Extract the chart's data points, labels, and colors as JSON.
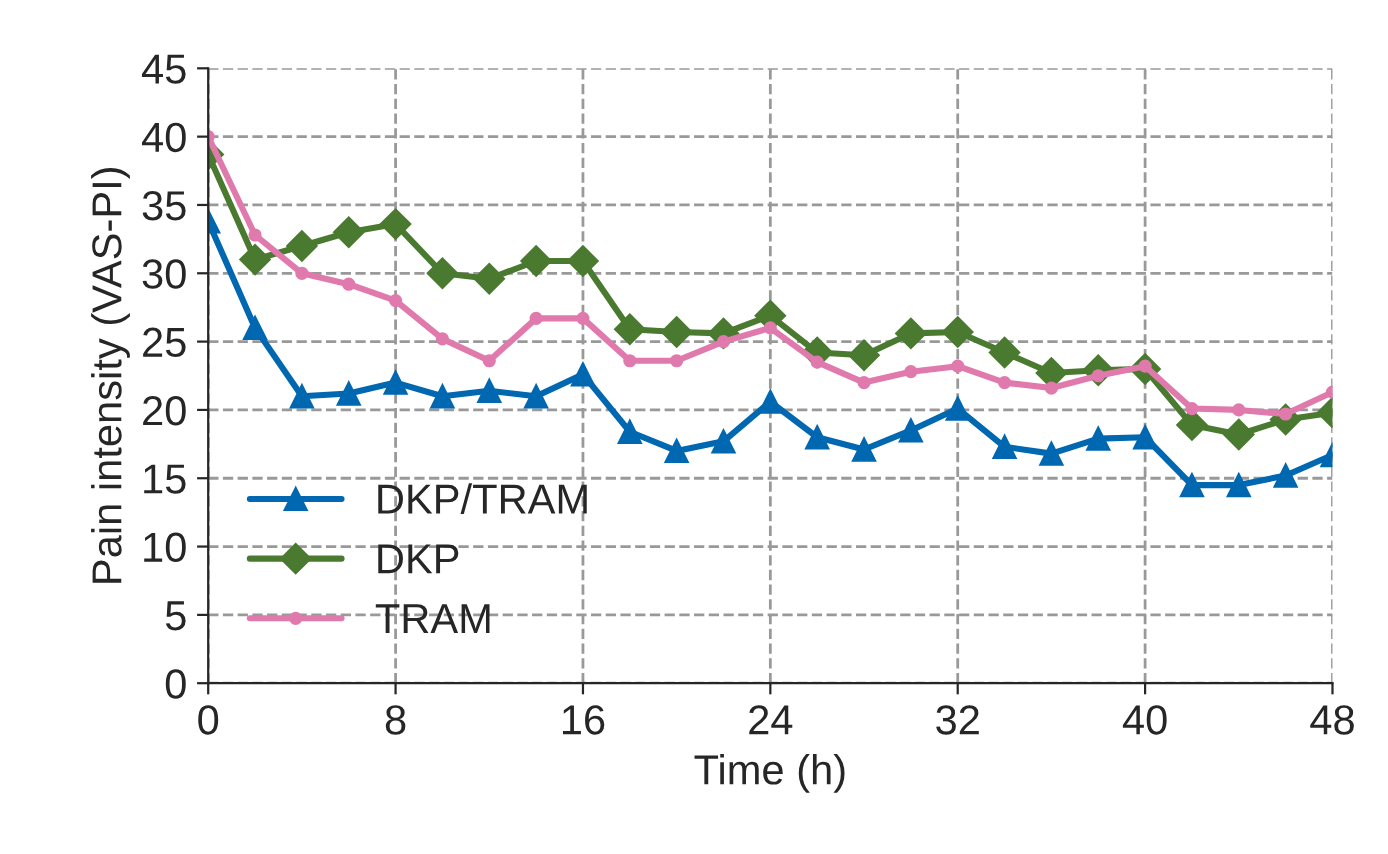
{
  "chart_data": {
    "type": "line",
    "xlabel": "Time (h)",
    "ylabel": "Pain intensity (VAS-PI)",
    "x": [
      0,
      2,
      4,
      6,
      8,
      10,
      12,
      14,
      16,
      18,
      20,
      22,
      24,
      26,
      28,
      30,
      32,
      34,
      36,
      38,
      40,
      42,
      44,
      46,
      48
    ],
    "xlim": [
      0,
      48
    ],
    "xticks": [
      0,
      8,
      16,
      24,
      32,
      40,
      48
    ],
    "ylim": [
      0,
      45
    ],
    "yticks": [
      0,
      5,
      10,
      15,
      20,
      25,
      30,
      35,
      40,
      45
    ],
    "grid": true,
    "legend": "bottom left",
    "line_style": "solid",
    "series": [
      {
        "name": "DKP/TRAM",
        "color": "#0067b1",
        "marker": "triangle",
        "values": [
          33.8,
          26,
          21,
          21.2,
          22,
          21,
          21.4,
          21,
          22.6,
          18.4,
          17,
          17.7,
          20.6,
          18,
          17.1,
          18.5,
          20.1,
          17.3,
          16.8,
          17.9,
          18,
          14.5,
          14.5,
          15.2,
          16.7
        ]
      },
      {
        "name": "DKP",
        "color": "#4a7a30",
        "marker": "diamond",
        "values": [
          38.7,
          31,
          32,
          33,
          33.6,
          30,
          29.6,
          30.9,
          30.9,
          25.9,
          25.7,
          25.6,
          26.9,
          24.2,
          24,
          25.6,
          25.7,
          24.2,
          22.7,
          22.9,
          23,
          18.9,
          18.2,
          19.3,
          19.8
        ]
      },
      {
        "name": "TRAM",
        "color": "#e07aad",
        "marker": "circle",
        "values": [
          40,
          32.8,
          30,
          29.2,
          28,
          25.2,
          23.6,
          26.7,
          26.7,
          23.6,
          23.6,
          25,
          26,
          23.5,
          22,
          22.8,
          23.2,
          22,
          21.6,
          22.5,
          23.2,
          20.1,
          20,
          19.7,
          21.3
        ]
      }
    ]
  }
}
